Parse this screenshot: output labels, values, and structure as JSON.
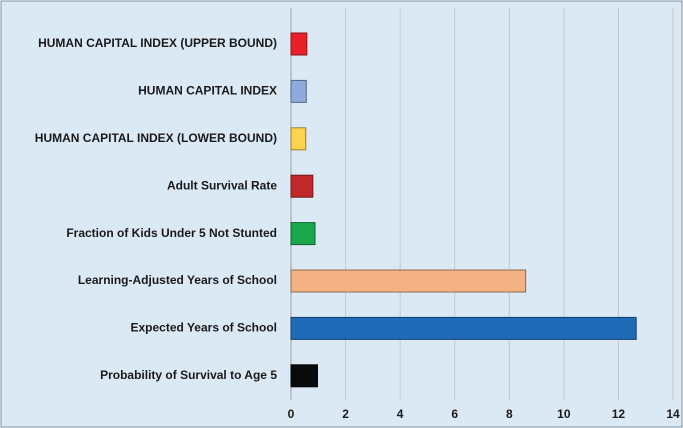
{
  "chart_data": {
    "type": "hbar",
    "categories": [
      "HUMAN CAPITAL INDEX (UPPER BOUND)",
      "HUMAN CAPITAL INDEX",
      "HUMAN CAPITAL INDEX (LOWER BOUND)",
      "Adult Survival Rate",
      "Fraction of Kids Under 5 Not Stunted",
      "Learning-Adjusted Years of School",
      "Expected Years of School",
      "Probability of Survival to Age 5"
    ],
    "values": [
      0.58,
      0.56,
      0.54,
      0.8,
      0.88,
      8.6,
      12.65,
      0.97
    ],
    "colors": [
      "#e8202a",
      "#8faadc",
      "#ffd34e",
      "#c0282a",
      "#1aa64a",
      "#f4b183",
      "#1f6bb8",
      "#0a0a0a"
    ],
    "xlim": [
      0,
      14
    ],
    "xticks": [
      0,
      2,
      4,
      6,
      8,
      10,
      12,
      14
    ],
    "grid": true
  }
}
